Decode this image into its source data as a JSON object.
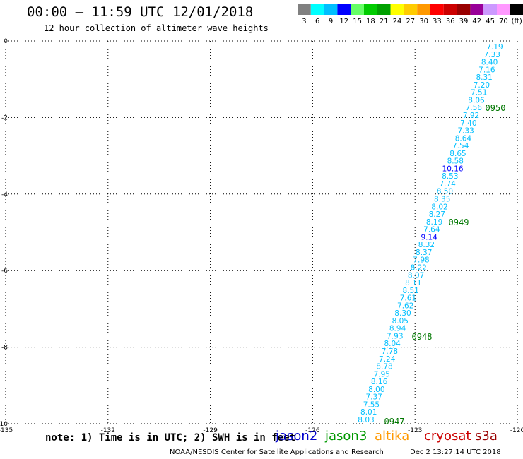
{
  "title": "00:00 – 11:59 UTC 12/01/2018",
  "subtitle": "12 hour collection of altimeter wave heights",
  "color_scale": {
    "colors": [
      "#808080",
      "#00ffff",
      "#00bfff",
      "#0000ff",
      "#66ff66",
      "#00cc00",
      "#00a000",
      "#ffff00",
      "#ffcc00",
      "#ff9900",
      "#ff0000",
      "#cc0000",
      "#990000",
      "#990099",
      "#cc99ff",
      "#ff99ff",
      "#000000"
    ],
    "labels": [
      "3",
      "6",
      "9",
      "12",
      "15",
      "18",
      "21",
      "24",
      "27",
      "30",
      "33",
      "36",
      "39",
      "42",
      "45",
      "70",
      "(ft)"
    ]
  },
  "axes": {
    "x_ticks": [
      "-135",
      "-132",
      "-129",
      "-126",
      "-123",
      "-120"
    ],
    "y_ticks": [
      "0",
      "-2",
      "-4",
      "-6",
      "-8",
      "-10"
    ]
  },
  "track": {
    "heights": [
      "7.19",
      "7.33",
      "8.40",
      "7.16",
      "8.31",
      "7.20",
      "7.51",
      "8.06",
      "7.56",
      "7.92",
      "7.40",
      "7.33",
      "8.64",
      "7.54",
      "8.65",
      "8.58",
      "10.16",
      "8.53",
      "7.74",
      "8.50",
      "8.35",
      "8.02",
      "8.27",
      "8.19",
      "7.64",
      "9.14",
      "8.32",
      "8.37",
      "7.98",
      "8.22",
      "8.07",
      "8.11",
      "8.51",
      "7.61",
      "7.62",
      "8.30",
      "8.05",
      "8.94",
      "7.93",
      "8.04",
      "7.78",
      "7.24",
      "8.78",
      "7.95",
      "8.16",
      "8.00",
      "7.37",
      "7.55",
      "8.01",
      "8.03"
    ],
    "time_labels": [
      "0950",
      "0949",
      "0948",
      "0947"
    ]
  },
  "footer": {
    "note": "note: 1) Time is in UTC; 2) SWH is in feet",
    "satellites": [
      {
        "name": "jason2",
        "color": "#0000cc"
      },
      {
        "name": "jason3",
        "color": "#009900"
      },
      {
        "name": "altika",
        "color": "#ff9900"
      },
      {
        "name": "cryosat",
        "color": "#cc0000"
      },
      {
        "name": "s3a",
        "color": "#990000"
      }
    ],
    "credit": "NOAA/NESDIS Center for Satellite Applications and Research",
    "date": "Dec  2 13:27:14 UTC 2018"
  }
}
